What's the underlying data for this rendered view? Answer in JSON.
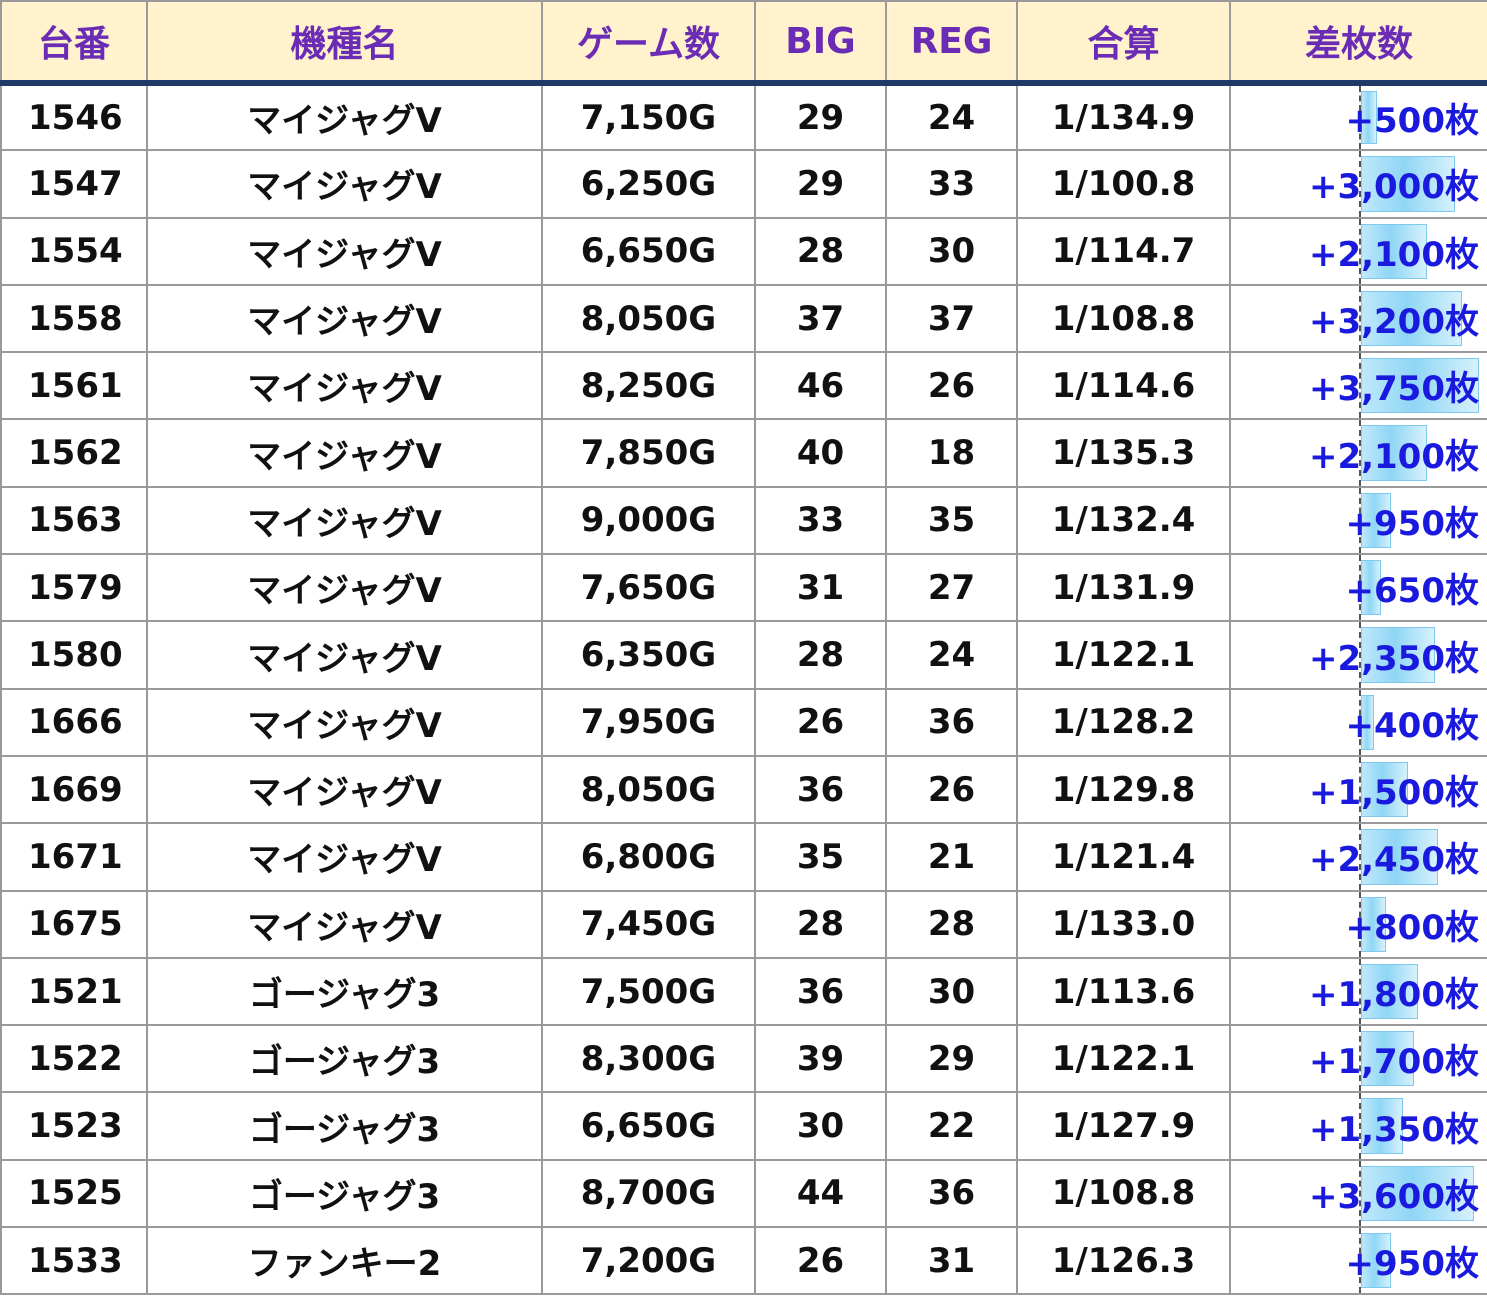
{
  "colors": {
    "header_background": "#fff2cc",
    "header_text": "#6a2bb5",
    "header_divider": "#1f3a68",
    "diff_text": "#1a1adf",
    "diff_bar": "#8fd6f5"
  },
  "columns": [
    "台番",
    "機種名",
    "ゲーム数",
    "BIG",
    "REG",
    "合算",
    "差枚数"
  ],
  "diff_scale_max": 3750,
  "rows": [
    {
      "id": "1546",
      "machine": "マイジャグV",
      "games": "7,150G",
      "big": "29",
      "reg": "24",
      "combined": "1/134.9",
      "diff": "+500枚",
      "diff_value": 500
    },
    {
      "id": "1547",
      "machine": "マイジャグV",
      "games": "6,250G",
      "big": "29",
      "reg": "33",
      "combined": "1/100.8",
      "diff": "+3,000枚",
      "diff_value": 3000
    },
    {
      "id": "1554",
      "machine": "マイジャグV",
      "games": "6,650G",
      "big": "28",
      "reg": "30",
      "combined": "1/114.7",
      "diff": "+2,100枚",
      "diff_value": 2100
    },
    {
      "id": "1558",
      "machine": "マイジャグV",
      "games": "8,050G",
      "big": "37",
      "reg": "37",
      "combined": "1/108.8",
      "diff": "+3,200枚",
      "diff_value": 3200
    },
    {
      "id": "1561",
      "machine": "マイジャグV",
      "games": "8,250G",
      "big": "46",
      "reg": "26",
      "combined": "1/114.6",
      "diff": "+3,750枚",
      "diff_value": 3750
    },
    {
      "id": "1562",
      "machine": "マイジャグV",
      "games": "7,850G",
      "big": "40",
      "reg": "18",
      "combined": "1/135.3",
      "diff": "+2,100枚",
      "diff_value": 2100
    },
    {
      "id": "1563",
      "machine": "マイジャグV",
      "games": "9,000G",
      "big": "33",
      "reg": "35",
      "combined": "1/132.4",
      "diff": "+950枚",
      "diff_value": 950
    },
    {
      "id": "1579",
      "machine": "マイジャグV",
      "games": "7,650G",
      "big": "31",
      "reg": "27",
      "combined": "1/131.9",
      "diff": "+650枚",
      "diff_value": 650
    },
    {
      "id": "1580",
      "machine": "マイジャグV",
      "games": "6,350G",
      "big": "28",
      "reg": "24",
      "combined": "1/122.1",
      "diff": "+2,350枚",
      "diff_value": 2350
    },
    {
      "id": "1666",
      "machine": "マイジャグV",
      "games": "7,950G",
      "big": "26",
      "reg": "36",
      "combined": "1/128.2",
      "diff": "+400枚",
      "diff_value": 400
    },
    {
      "id": "1669",
      "machine": "マイジャグV",
      "games": "8,050G",
      "big": "36",
      "reg": "26",
      "combined": "1/129.8",
      "diff": "+1,500枚",
      "diff_value": 1500
    },
    {
      "id": "1671",
      "machine": "マイジャグV",
      "games": "6,800G",
      "big": "35",
      "reg": "21",
      "combined": "1/121.4",
      "diff": "+2,450枚",
      "diff_value": 2450
    },
    {
      "id": "1675",
      "machine": "マイジャグV",
      "games": "7,450G",
      "big": "28",
      "reg": "28",
      "combined": "1/133.0",
      "diff": "+800枚",
      "diff_value": 800
    },
    {
      "id": "1521",
      "machine": "ゴージャグ3",
      "games": "7,500G",
      "big": "36",
      "reg": "30",
      "combined": "1/113.6",
      "diff": "+1,800枚",
      "diff_value": 1800
    },
    {
      "id": "1522",
      "machine": "ゴージャグ3",
      "games": "8,300G",
      "big": "39",
      "reg": "29",
      "combined": "1/122.1",
      "diff": "+1,700枚",
      "diff_value": 1700
    },
    {
      "id": "1523",
      "machine": "ゴージャグ3",
      "games": "6,650G",
      "big": "30",
      "reg": "22",
      "combined": "1/127.9",
      "diff": "+1,350枚",
      "diff_value": 1350
    },
    {
      "id": "1525",
      "machine": "ゴージャグ3",
      "games": "8,700G",
      "big": "44",
      "reg": "36",
      "combined": "1/108.8",
      "diff": "+3,600枚",
      "diff_value": 3600
    },
    {
      "id": "1533",
      "machine": "ファンキー2",
      "games": "7,200G",
      "big": "26",
      "reg": "31",
      "combined": "1/126.3",
      "diff": "+950枚",
      "diff_value": 950
    }
  ]
}
